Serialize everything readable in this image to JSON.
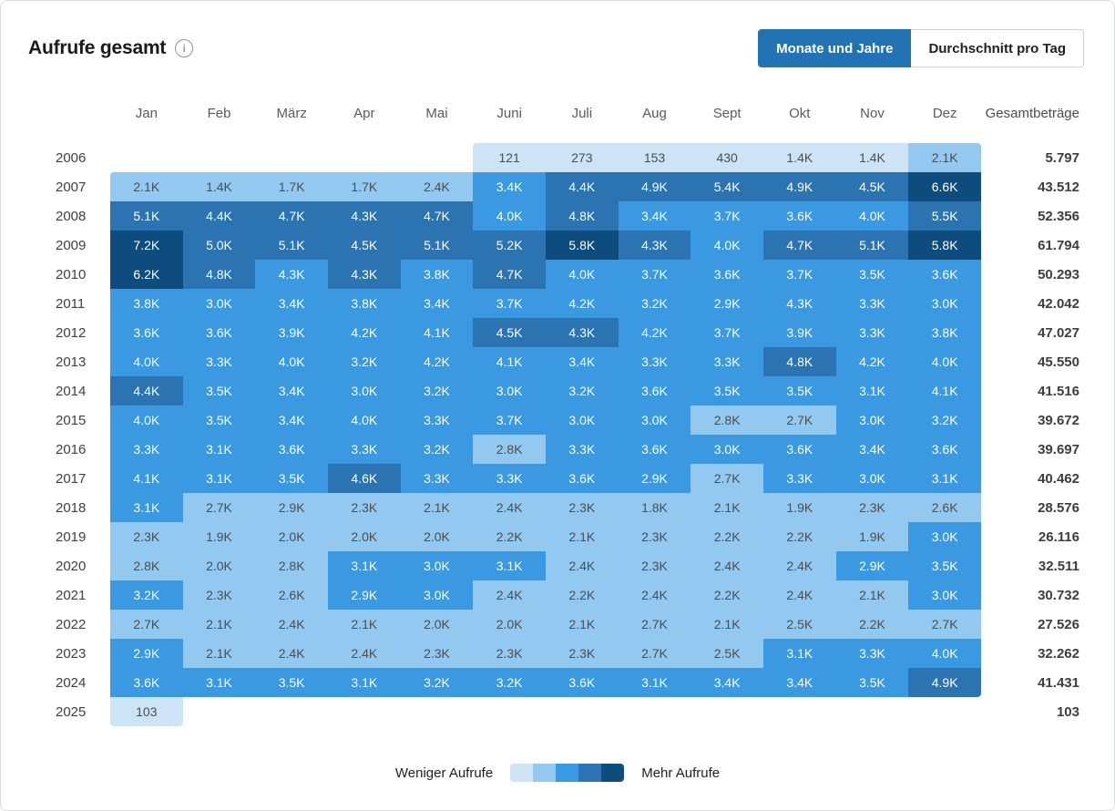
{
  "header": {
    "title": "Aufrufe gesamt",
    "toggle": {
      "active_label": "Monate und Jahre",
      "inactive_label": "Durchschnitt pro Tag"
    }
  },
  "heatmap": {
    "month_headers": [
      "Jan",
      "Feb",
      "März",
      "Apr",
      "Mai",
      "Juni",
      "Juli",
      "Aug",
      "Sept",
      "Okt",
      "Nov",
      "Dez"
    ],
    "totals_header": "Gesamtbeträge",
    "rows": [
      {
        "year": "2006",
        "cells": [
          null,
          null,
          null,
          null,
          null,
          {
            "v": "121",
            "t": 1
          },
          {
            "v": "273",
            "t": 1
          },
          {
            "v": "153",
            "t": 1
          },
          {
            "v": "430",
            "t": 1
          },
          {
            "v": "1.4K",
            "t": 1
          },
          {
            "v": "1.4K",
            "t": 1
          },
          {
            "v": "2.1K",
            "t": 2
          }
        ],
        "total": "5.797"
      },
      {
        "year": "2007",
        "cells": [
          {
            "v": "2.1K",
            "t": 2
          },
          {
            "v": "1.4K",
            "t": 2
          },
          {
            "v": "1.7K",
            "t": 2
          },
          {
            "v": "1.7K",
            "t": 2
          },
          {
            "v": "2.4K",
            "t": 2
          },
          {
            "v": "3.4K",
            "t": 3
          },
          {
            "v": "4.4K",
            "t": 4
          },
          {
            "v": "4.9K",
            "t": 4
          },
          {
            "v": "5.4K",
            "t": 4
          },
          {
            "v": "4.9K",
            "t": 4
          },
          {
            "v": "4.5K",
            "t": 4
          },
          {
            "v": "6.6K",
            "t": 5
          }
        ],
        "total": "43.512"
      },
      {
        "year": "2008",
        "cells": [
          {
            "v": "5.1K",
            "t": 4
          },
          {
            "v": "4.4K",
            "t": 4
          },
          {
            "v": "4.7K",
            "t": 4
          },
          {
            "v": "4.3K",
            "t": 4
          },
          {
            "v": "4.7K",
            "t": 4
          },
          {
            "v": "4.0K",
            "t": 3
          },
          {
            "v": "4.8K",
            "t": 4
          },
          {
            "v": "3.4K",
            "t": 3
          },
          {
            "v": "3.7K",
            "t": 3
          },
          {
            "v": "3.6K",
            "t": 3
          },
          {
            "v": "4.0K",
            "t": 3
          },
          {
            "v": "5.5K",
            "t": 4
          }
        ],
        "total": "52.356"
      },
      {
        "year": "2009",
        "cells": [
          {
            "v": "7.2K",
            "t": 5
          },
          {
            "v": "5.0K",
            "t": 4
          },
          {
            "v": "5.1K",
            "t": 4
          },
          {
            "v": "4.5K",
            "t": 4
          },
          {
            "v": "5.1K",
            "t": 4
          },
          {
            "v": "5.2K",
            "t": 4
          },
          {
            "v": "5.8K",
            "t": 5
          },
          {
            "v": "4.3K",
            "t": 4
          },
          {
            "v": "4.0K",
            "t": 3
          },
          {
            "v": "4.7K",
            "t": 4
          },
          {
            "v": "5.1K",
            "t": 4
          },
          {
            "v": "5.8K",
            "t": 5
          }
        ],
        "total": "61.794"
      },
      {
        "year": "2010",
        "cells": [
          {
            "v": "6.2K",
            "t": 5
          },
          {
            "v": "4.8K",
            "t": 4
          },
          {
            "v": "4.3K",
            "t": 3
          },
          {
            "v": "4.3K",
            "t": 4
          },
          {
            "v": "3.8K",
            "t": 3
          },
          {
            "v": "4.7K",
            "t": 4
          },
          {
            "v": "4.0K",
            "t": 3
          },
          {
            "v": "3.7K",
            "t": 3
          },
          {
            "v": "3.6K",
            "t": 3
          },
          {
            "v": "3.7K",
            "t": 3
          },
          {
            "v": "3.5K",
            "t": 3
          },
          {
            "v": "3.6K",
            "t": 3
          }
        ],
        "total": "50.293"
      },
      {
        "year": "2011",
        "cells": [
          {
            "v": "3.8K",
            "t": 3
          },
          {
            "v": "3.0K",
            "t": 3
          },
          {
            "v": "3.4K",
            "t": 3
          },
          {
            "v": "3.8K",
            "t": 3
          },
          {
            "v": "3.4K",
            "t": 3
          },
          {
            "v": "3.7K",
            "t": 3
          },
          {
            "v": "4.2K",
            "t": 3
          },
          {
            "v": "3.2K",
            "t": 3
          },
          {
            "v": "2.9K",
            "t": 3
          },
          {
            "v": "4.3K",
            "t": 3
          },
          {
            "v": "3.3K",
            "t": 3
          },
          {
            "v": "3.0K",
            "t": 3
          }
        ],
        "total": "42.042"
      },
      {
        "year": "2012",
        "cells": [
          {
            "v": "3.6K",
            "t": 3
          },
          {
            "v": "3.6K",
            "t": 3
          },
          {
            "v": "3.9K",
            "t": 3
          },
          {
            "v": "4.2K",
            "t": 3
          },
          {
            "v": "4.1K",
            "t": 3
          },
          {
            "v": "4.5K",
            "t": 4
          },
          {
            "v": "4.3K",
            "t": 4
          },
          {
            "v": "4.2K",
            "t": 3
          },
          {
            "v": "3.7K",
            "t": 3
          },
          {
            "v": "3.9K",
            "t": 3
          },
          {
            "v": "3.3K",
            "t": 3
          },
          {
            "v": "3.8K",
            "t": 3
          }
        ],
        "total": "47.027"
      },
      {
        "year": "2013",
        "cells": [
          {
            "v": "4.0K",
            "t": 3
          },
          {
            "v": "3.3K",
            "t": 3
          },
          {
            "v": "4.0K",
            "t": 3
          },
          {
            "v": "3.2K",
            "t": 3
          },
          {
            "v": "4.2K",
            "t": 3
          },
          {
            "v": "4.1K",
            "t": 3
          },
          {
            "v": "3.4K",
            "t": 3
          },
          {
            "v": "3.3K",
            "t": 3
          },
          {
            "v": "3.3K",
            "t": 3
          },
          {
            "v": "4.8K",
            "t": 4
          },
          {
            "v": "4.2K",
            "t": 3
          },
          {
            "v": "4.0K",
            "t": 3
          }
        ],
        "total": "45.550"
      },
      {
        "year": "2014",
        "cells": [
          {
            "v": "4.4K",
            "t": 4
          },
          {
            "v": "3.5K",
            "t": 3
          },
          {
            "v": "3.4K",
            "t": 3
          },
          {
            "v": "3.0K",
            "t": 3
          },
          {
            "v": "3.2K",
            "t": 3
          },
          {
            "v": "3.0K",
            "t": 3
          },
          {
            "v": "3.2K",
            "t": 3
          },
          {
            "v": "3.6K",
            "t": 3
          },
          {
            "v": "3.5K",
            "t": 3
          },
          {
            "v": "3.5K",
            "t": 3
          },
          {
            "v": "3.1K",
            "t": 3
          },
          {
            "v": "4.1K",
            "t": 3
          }
        ],
        "total": "41.516"
      },
      {
        "year": "2015",
        "cells": [
          {
            "v": "4.0K",
            "t": 3
          },
          {
            "v": "3.5K",
            "t": 3
          },
          {
            "v": "3.4K",
            "t": 3
          },
          {
            "v": "4.0K",
            "t": 3
          },
          {
            "v": "3.3K",
            "t": 3
          },
          {
            "v": "3.7K",
            "t": 3
          },
          {
            "v": "3.0K",
            "t": 3
          },
          {
            "v": "3.0K",
            "t": 3
          },
          {
            "v": "2.8K",
            "t": 2
          },
          {
            "v": "2.7K",
            "t": 2
          },
          {
            "v": "3.0K",
            "t": 3
          },
          {
            "v": "3.2K",
            "t": 3
          }
        ],
        "total": "39.672"
      },
      {
        "year": "2016",
        "cells": [
          {
            "v": "3.3K",
            "t": 3
          },
          {
            "v": "3.1K",
            "t": 3
          },
          {
            "v": "3.6K",
            "t": 3
          },
          {
            "v": "3.3K",
            "t": 3
          },
          {
            "v": "3.2K",
            "t": 3
          },
          {
            "v": "2.8K",
            "t": 2
          },
          {
            "v": "3.3K",
            "t": 3
          },
          {
            "v": "3.6K",
            "t": 3
          },
          {
            "v": "3.0K",
            "t": 3
          },
          {
            "v": "3.6K",
            "t": 3
          },
          {
            "v": "3.4K",
            "t": 3
          },
          {
            "v": "3.6K",
            "t": 3
          }
        ],
        "total": "39.697"
      },
      {
        "year": "2017",
        "cells": [
          {
            "v": "4.1K",
            "t": 3
          },
          {
            "v": "3.1K",
            "t": 3
          },
          {
            "v": "3.5K",
            "t": 3
          },
          {
            "v": "4.6K",
            "t": 4
          },
          {
            "v": "3.3K",
            "t": 3
          },
          {
            "v": "3.3K",
            "t": 3
          },
          {
            "v": "3.6K",
            "t": 3
          },
          {
            "v": "2.9K",
            "t": 3
          },
          {
            "v": "2.7K",
            "t": 2
          },
          {
            "v": "3.3K",
            "t": 3
          },
          {
            "v": "3.0K",
            "t": 3
          },
          {
            "v": "3.1K",
            "t": 3
          }
        ],
        "total": "40.462"
      },
      {
        "year": "2018",
        "cells": [
          {
            "v": "3.1K",
            "t": 3
          },
          {
            "v": "2.7K",
            "t": 2
          },
          {
            "v": "2.9K",
            "t": 2
          },
          {
            "v": "2.3K",
            "t": 2
          },
          {
            "v": "2.1K",
            "t": 2
          },
          {
            "v": "2.4K",
            "t": 2
          },
          {
            "v": "2.3K",
            "t": 2
          },
          {
            "v": "1.8K",
            "t": 2
          },
          {
            "v": "2.1K",
            "t": 2
          },
          {
            "v": "1.9K",
            "t": 2
          },
          {
            "v": "2.3K",
            "t": 2
          },
          {
            "v": "2.6K",
            "t": 2
          }
        ],
        "total": "28.576"
      },
      {
        "year": "2019",
        "cells": [
          {
            "v": "2.3K",
            "t": 2
          },
          {
            "v": "1.9K",
            "t": 2
          },
          {
            "v": "2.0K",
            "t": 2
          },
          {
            "v": "2.0K",
            "t": 2
          },
          {
            "v": "2.0K",
            "t": 2
          },
          {
            "v": "2.2K",
            "t": 2
          },
          {
            "v": "2.1K",
            "t": 2
          },
          {
            "v": "2.3K",
            "t": 2
          },
          {
            "v": "2.2K",
            "t": 2
          },
          {
            "v": "2.2K",
            "t": 2
          },
          {
            "v": "1.9K",
            "t": 2
          },
          {
            "v": "3.0K",
            "t": 3
          }
        ],
        "total": "26.116"
      },
      {
        "year": "2020",
        "cells": [
          {
            "v": "2.8K",
            "t": 2
          },
          {
            "v": "2.0K",
            "t": 2
          },
          {
            "v": "2.8K",
            "t": 2
          },
          {
            "v": "3.1K",
            "t": 3
          },
          {
            "v": "3.0K",
            "t": 3
          },
          {
            "v": "3.1K",
            "t": 3
          },
          {
            "v": "2.4K",
            "t": 2
          },
          {
            "v": "2.3K",
            "t": 2
          },
          {
            "v": "2.4K",
            "t": 2
          },
          {
            "v": "2.4K",
            "t": 2
          },
          {
            "v": "2.9K",
            "t": 3
          },
          {
            "v": "3.5K",
            "t": 3
          }
        ],
        "total": "32.511"
      },
      {
        "year": "2021",
        "cells": [
          {
            "v": "3.2K",
            "t": 3
          },
          {
            "v": "2.3K",
            "t": 2
          },
          {
            "v": "2.6K",
            "t": 2
          },
          {
            "v": "2.9K",
            "t": 3
          },
          {
            "v": "3.0K",
            "t": 3
          },
          {
            "v": "2.4K",
            "t": 2
          },
          {
            "v": "2.2K",
            "t": 2
          },
          {
            "v": "2.4K",
            "t": 2
          },
          {
            "v": "2.2K",
            "t": 2
          },
          {
            "v": "2.4K",
            "t": 2
          },
          {
            "v": "2.1K",
            "t": 2
          },
          {
            "v": "3.0K",
            "t": 3
          }
        ],
        "total": "30.732"
      },
      {
        "year": "2022",
        "cells": [
          {
            "v": "2.7K",
            "t": 2
          },
          {
            "v": "2.1K",
            "t": 2
          },
          {
            "v": "2.4K",
            "t": 2
          },
          {
            "v": "2.1K",
            "t": 2
          },
          {
            "v": "2.0K",
            "t": 2
          },
          {
            "v": "2.0K",
            "t": 2
          },
          {
            "v": "2.1K",
            "t": 2
          },
          {
            "v": "2.7K",
            "t": 2
          },
          {
            "v": "2.1K",
            "t": 2
          },
          {
            "v": "2.5K",
            "t": 2
          },
          {
            "v": "2.2K",
            "t": 2
          },
          {
            "v": "2.7K",
            "t": 2
          }
        ],
        "total": "27.526"
      },
      {
        "year": "2023",
        "cells": [
          {
            "v": "2.9K",
            "t": 3
          },
          {
            "v": "2.1K",
            "t": 2
          },
          {
            "v": "2.4K",
            "t": 2
          },
          {
            "v": "2.4K",
            "t": 2
          },
          {
            "v": "2.3K",
            "t": 2
          },
          {
            "v": "2.3K",
            "t": 2
          },
          {
            "v": "2.3K",
            "t": 2
          },
          {
            "v": "2.7K",
            "t": 2
          },
          {
            "v": "2.5K",
            "t": 2
          },
          {
            "v": "3.1K",
            "t": 3
          },
          {
            "v": "3.3K",
            "t": 3
          },
          {
            "v": "4.0K",
            "t": 3
          }
        ],
        "total": "32.262"
      },
      {
        "year": "2024",
        "cells": [
          {
            "v": "3.6K",
            "t": 3
          },
          {
            "v": "3.1K",
            "t": 3
          },
          {
            "v": "3.5K",
            "t": 3
          },
          {
            "v": "3.1K",
            "t": 3
          },
          {
            "v": "3.2K",
            "t": 3
          },
          {
            "v": "3.2K",
            "t": 3
          },
          {
            "v": "3.6K",
            "t": 3
          },
          {
            "v": "3.1K",
            "t": 3
          },
          {
            "v": "3.4K",
            "t": 3
          },
          {
            "v": "3.4K",
            "t": 3
          },
          {
            "v": "3.5K",
            "t": 3
          },
          {
            "v": "4.9K",
            "t": 4
          }
        ],
        "total": "41.431"
      },
      {
        "year": "2025",
        "cells": [
          {
            "v": "103",
            "t": 1
          },
          null,
          null,
          null,
          null,
          null,
          null,
          null,
          null,
          null,
          null,
          null
        ],
        "total": "103"
      }
    ]
  },
  "legend": {
    "less_label": "Weniger Aufrufe",
    "more_label": "Mehr Aufrufe",
    "palette": [
      "#cde4f7",
      "#93c9f0",
      "#3a99e0",
      "#2b74b1",
      "#0e4c7d"
    ]
  },
  "colors": {
    "accent": "#2173b4",
    "cell_text_light_bg": "#4d4d4d",
    "cell_text_dark_bg": "#ffffff"
  }
}
